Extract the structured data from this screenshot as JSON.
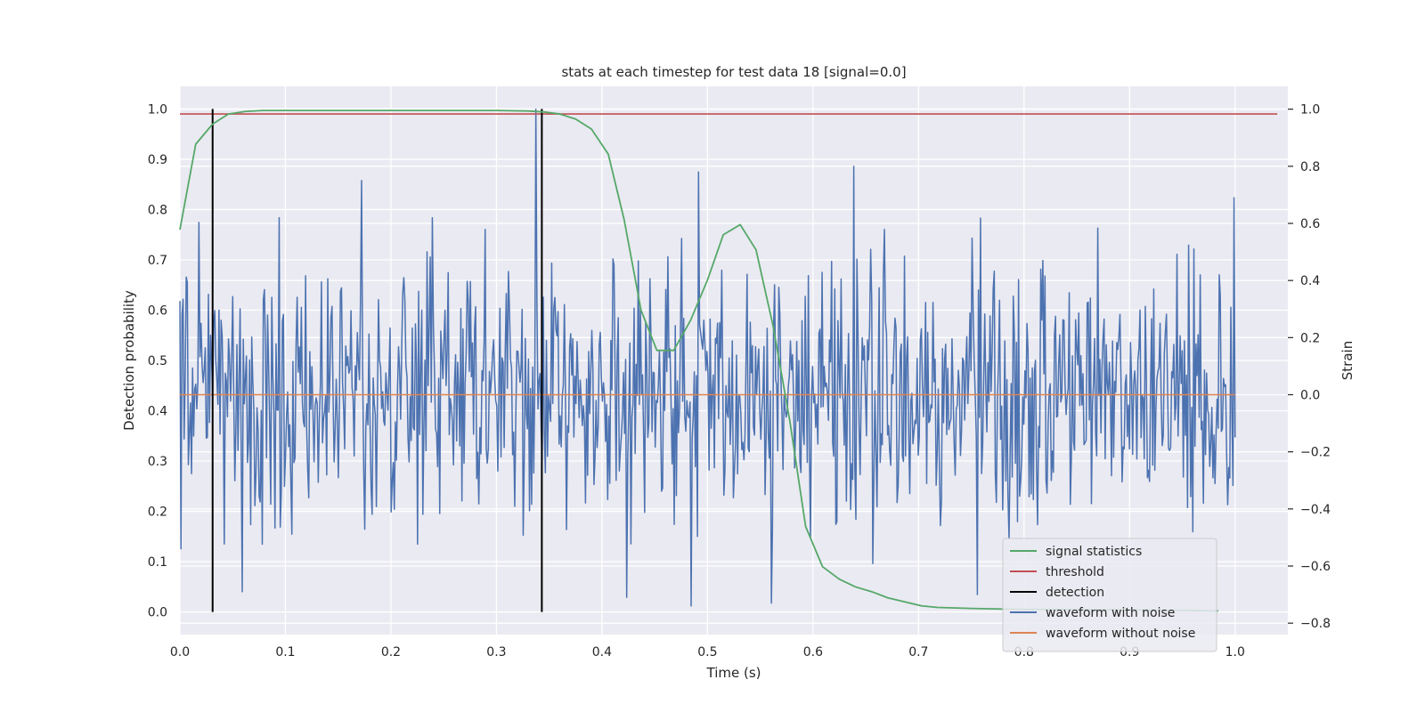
{
  "chart_data": {
    "type": "line",
    "title": "stats at each timestep for test data 18 [signal=0.0]",
    "xlabel": "Time (s)",
    "ylabel_left": "Detection probability",
    "ylabel_right": "Strain",
    "xlim": [
      0.0,
      1.05
    ],
    "ylim_left": [
      -0.045,
      1.045
    ],
    "ylim_right": [
      -0.84,
      1.08
    ],
    "x_ticks": [
      "0.0",
      "0.1",
      "0.2",
      "0.3",
      "0.4",
      "0.5",
      "0.6",
      "0.7",
      "0.8",
      "0.9",
      "1.0"
    ],
    "y_left_ticks": [
      "0.0",
      "0.1",
      "0.2",
      "0.3",
      "0.4",
      "0.5",
      "0.6",
      "0.7",
      "0.8",
      "0.9",
      "1.0"
    ],
    "y_right_ticks": [
      "−0.8",
      "−0.6",
      "−0.4",
      "−0.2",
      "0.0",
      "0.2",
      "0.4",
      "0.6",
      "0.8",
      "1.0"
    ],
    "grid": true,
    "legend_position": "lower-right",
    "colors": {
      "background": "#eaeaf2",
      "grid": "#ffffff",
      "signal_statistics": "#55a868",
      "threshold": "#c44e52",
      "detection": "#000000",
      "waveform_with_noise": "#4c72b0",
      "waveform_without_noise": "#dd8452"
    },
    "series": [
      {
        "name": "signal statistics",
        "axis": "left",
        "x": [
          0.0,
          0.015,
          0.031,
          0.046,
          0.062,
          0.078,
          0.1,
          0.15,
          0.2,
          0.25,
          0.3,
          0.33,
          0.345,
          0.36,
          0.375,
          0.39,
          0.406,
          0.421,
          0.437,
          0.452,
          0.468,
          0.484,
          0.5,
          0.515,
          0.531,
          0.546,
          0.562,
          0.578,
          0.593,
          0.609,
          0.625,
          0.64,
          0.656,
          0.671,
          0.687,
          0.703,
          0.718,
          0.75,
          0.8,
          0.85,
          0.9,
          0.95,
          0.984
        ],
        "y": [
          0.76,
          0.93,
          0.97,
          0.99,
          0.995,
          0.997,
          0.997,
          0.997,
          0.997,
          0.997,
          0.997,
          0.996,
          0.994,
          0.99,
          0.98,
          0.96,
          0.91,
          0.78,
          0.6,
          0.52,
          0.52,
          0.58,
          0.66,
          0.75,
          0.77,
          0.72,
          0.57,
          0.38,
          0.17,
          0.09,
          0.065,
          0.05,
          0.04,
          0.028,
          0.02,
          0.012,
          0.009,
          0.007,
          0.005,
          0.005,
          0.004,
          0.003,
          0.002
        ]
      },
      {
        "name": "threshold",
        "axis": "left",
        "x": [
          0.0,
          1.04
        ],
        "y": [
          0.99,
          0.99
        ]
      },
      {
        "name": "detection",
        "axis": "left",
        "segments": [
          {
            "x": 0.031,
            "y0": 0.0,
            "y1": 1.0
          },
          {
            "x": 0.343,
            "y0": 0.0,
            "y1": 1.0
          }
        ]
      },
      {
        "name": "waveform with noise",
        "axis": "right",
        "x_start": 0.0,
        "x_end": 1.0,
        "n_points": 1000,
        "approx_std": 0.23,
        "peaks": [
          {
            "x": 0.337,
            "y": 1.0
          },
          {
            "x": 0.639,
            "y": 0.8
          },
          {
            "x": 0.491,
            "y": 0.78
          },
          {
            "x": 0.172,
            "y": 0.75
          },
          {
            "x": 0.999,
            "y": 0.69
          },
          {
            "x": 0.001,
            "y": -0.54
          },
          {
            "x": 0.484,
            "y": -0.74
          },
          {
            "x": 0.561,
            "y": -0.73
          },
          {
            "x": 0.059,
            "y": -0.69
          },
          {
            "x": 0.423,
            "y": -0.71
          },
          {
            "x": 0.756,
            "y": -0.7
          },
          {
            "x": 0.96,
            "y": -0.48
          }
        ]
      },
      {
        "name": "waveform without noise",
        "axis": "right",
        "x": [
          0.0,
          1.0
        ],
        "y": [
          0.0,
          0.0
        ]
      }
    ],
    "legend": [
      "signal statistics",
      "threshold",
      "detection",
      "waveform with noise",
      "waveform without noise"
    ]
  }
}
